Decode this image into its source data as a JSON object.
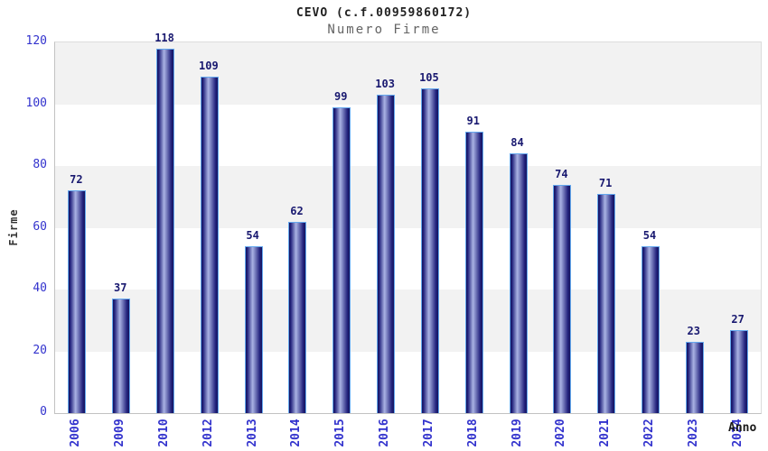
{
  "title": "CEVO (c.f.00959860172)",
  "subtitle": "Numero Firme",
  "chart_data": {
    "type": "bar",
    "categories": [
      "2006",
      "2009",
      "2010",
      "2012",
      "2013",
      "2014",
      "2015",
      "2016",
      "2017",
      "2018",
      "2019",
      "2020",
      "2021",
      "2022",
      "2023",
      "2024"
    ],
    "values": [
      72,
      37,
      118,
      109,
      54,
      62,
      99,
      103,
      105,
      91,
      84,
      74,
      71,
      54,
      23,
      27
    ],
    "title": "CEVO (c.f.00959860172)",
    "subtitle": "Numero Firme",
    "xlabel": "Anno",
    "ylabel": "Firme",
    "ylim": [
      0,
      120
    ],
    "ytick_step": 20,
    "yticks": [
      0,
      20,
      40,
      60,
      80,
      100,
      120
    ],
    "grid": "horizontal-bands",
    "legend_position": "none",
    "bar_value_labels": true
  },
  "colors": {
    "title_color": "#222222",
    "subtitle_color": "#646464",
    "tick_label": "#3232cd",
    "value_label": "#191970",
    "bar_border": "#64a8ee",
    "bar_edge": "#14145e",
    "bar_dark": "#23237d",
    "bar_mid": "#aab3e4",
    "band_gray": "#f2f2f2",
    "band_white": "#ffffff"
  }
}
